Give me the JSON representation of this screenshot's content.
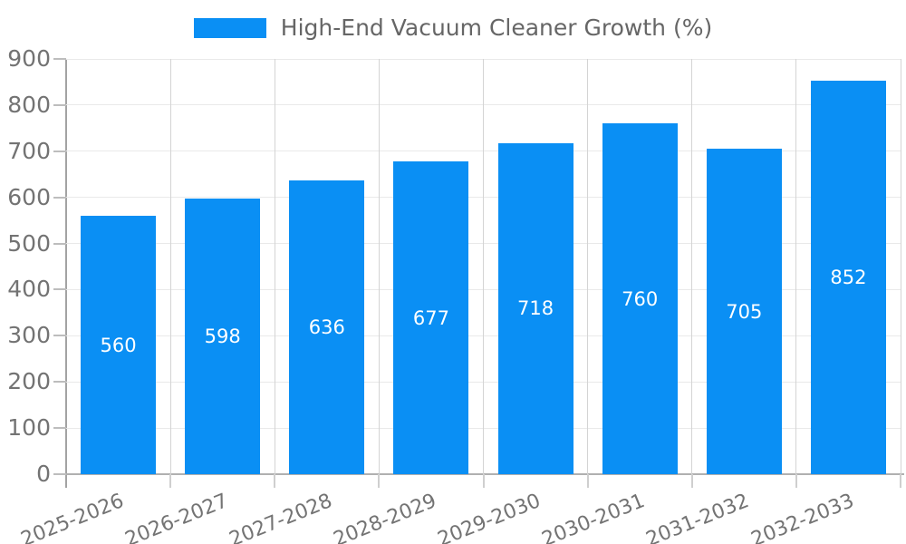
{
  "legend": {
    "label": "High-End Vacuum Cleaner Growth (%)"
  },
  "chart_data": {
    "type": "bar",
    "title": "High-End Vacuum Cleaner Growth (%)",
    "categories": [
      "2025-2026",
      "2026-2027",
      "2027-2028",
      "2028-2029",
      "2029-2030",
      "2030-2031",
      "2031-2032",
      "2032-2033"
    ],
    "values": [
      560,
      598,
      636,
      677,
      718,
      760,
      705,
      852
    ],
    "xlabel": "",
    "ylabel": "",
    "ylim": [
      0,
      900
    ],
    "ytick_step": 100,
    "grid": true,
    "legend_position": "top-center",
    "bar_color": "#0a8ff4",
    "value_label_color": "#ffffff",
    "axis_text_color": "#737373",
    "legend_text_color": "#666666"
  }
}
